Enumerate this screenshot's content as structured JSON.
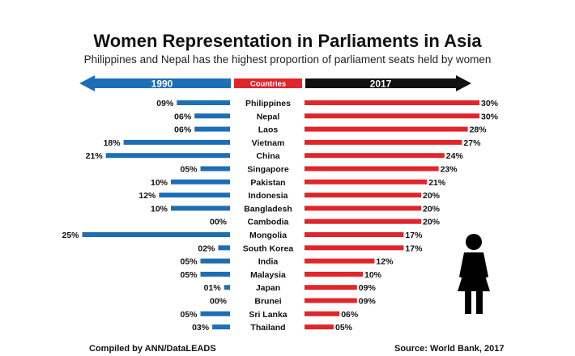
{
  "chart_data": {
    "type": "bar",
    "title": "Women Representation in Parliaments in Asia",
    "subtitle": "Philippines and Nepal has the highest proportion of parliament seats held by women",
    "header_left": "1990",
    "header_center": "Countries",
    "header_right": "2017",
    "categories": [
      "Philippines",
      "Nepal",
      "Laos",
      "Vietnam",
      "China",
      "Singapore",
      "Pakistan",
      "Indonesia",
      "Bangladesh",
      "Cambodia",
      "Mongolia",
      "South Korea",
      "India",
      "Malaysia",
      "Japan",
      "Brunei",
      "Sri Lanka",
      "Thailand"
    ],
    "series": [
      {
        "name": "1990",
        "values": [
          9,
          6,
          6,
          18,
          21,
          5,
          10,
          12,
          10,
          0,
          25,
          2,
          5,
          5,
          1,
          0,
          5,
          3
        ],
        "labels": [
          "09%",
          "06%",
          "06%",
          "18%",
          "21%",
          "05%",
          "10%",
          "12%",
          "10%",
          "00%",
          "25%",
          "02%",
          "05%",
          "05%",
          "01%",
          "00%",
          "05%",
          "03%"
        ]
      },
      {
        "name": "2017",
        "values": [
          30,
          30,
          28,
          27,
          24,
          23,
          21,
          20,
          20,
          20,
          17,
          17,
          12,
          10,
          9,
          9,
          6,
          5
        ],
        "labels": [
          "30%",
          "30%",
          "28%",
          "27%",
          "24%",
          "23%",
          "21%",
          "20%",
          "20%",
          "20%",
          "17%",
          "17%",
          "12%",
          "10%",
          "09%",
          "09%",
          "06%",
          "05%"
        ]
      }
    ],
    "colors": {
      "left": "#1e6eb5",
      "right": "#e0262b",
      "center": "#e0262b",
      "right_arrow": "#111111"
    },
    "icon": "woman-silhouette-icon",
    "footer_left": "Compiled by ANN/DataLEADS",
    "footer_right": "Source: World Bank, 2017"
  }
}
